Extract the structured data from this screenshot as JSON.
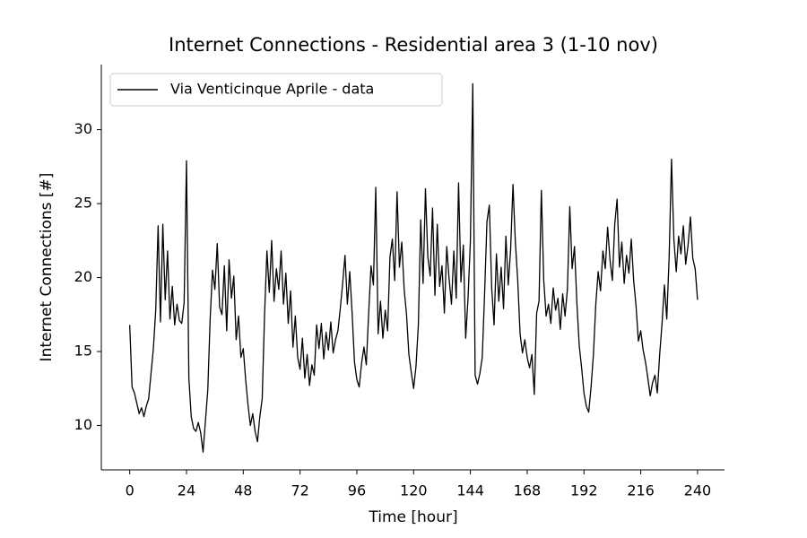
{
  "chart_data": {
    "type": "line",
    "title": "Internet Connections - Residential area 3 (1-10 nov)",
    "xlabel": "Time [hour]",
    "ylabel": "Internet Connections [#]",
    "legend": "upper left",
    "xlim": [
      -12,
      251.4
    ],
    "ylim": [
      7.0,
      34.4
    ],
    "xticks": [
      0,
      24,
      48,
      72,
      96,
      120,
      144,
      168,
      192,
      216,
      240
    ],
    "yticks": [
      10,
      15,
      20,
      25,
      30
    ],
    "x": [
      0,
      1,
      2,
      3,
      4,
      5,
      6,
      7,
      8,
      9,
      10,
      11,
      12,
      13,
      14,
      15,
      16,
      17,
      18,
      19,
      20,
      21,
      22,
      23,
      24,
      25,
      26,
      27,
      28,
      29,
      30,
      31,
      32,
      33,
      34,
      35,
      36,
      37,
      38,
      39,
      40,
      41,
      42,
      43,
      44,
      45,
      46,
      47,
      48,
      49,
      50,
      51,
      52,
      53,
      54,
      55,
      56,
      57,
      58,
      59,
      60,
      61,
      62,
      63,
      64,
      65,
      66,
      67,
      68,
      69,
      70,
      71,
      72,
      73,
      74,
      75,
      76,
      77,
      78,
      79,
      80,
      81,
      82,
      83,
      84,
      85,
      86,
      87,
      88,
      89,
      90,
      91,
      92,
      93,
      94,
      95,
      96,
      97,
      98,
      99,
      100,
      101,
      102,
      103,
      104,
      105,
      106,
      107,
      108,
      109,
      110,
      111,
      112,
      113,
      114,
      115,
      116,
      117,
      118,
      119,
      120,
      121,
      122,
      123,
      124,
      125,
      126,
      127,
      128,
      129,
      130,
      131,
      132,
      133,
      134,
      135,
      136,
      137,
      138,
      139,
      140,
      141,
      142,
      143,
      144,
      145,
      146,
      147,
      148,
      149,
      150,
      151,
      152,
      153,
      154,
      155,
      156,
      157,
      158,
      159,
      160,
      161,
      162,
      163,
      164,
      165,
      166,
      167,
      168,
      169,
      170,
      171,
      172,
      173,
      174,
      175,
      176,
      177,
      178,
      179,
      180,
      181,
      182,
      183,
      184,
      185,
      186,
      187,
      188,
      189,
      190,
      191,
      192,
      193,
      194,
      195,
      196,
      197,
      198,
      199,
      200,
      201,
      202,
      203,
      204,
      205,
      206,
      207,
      208,
      209,
      210,
      211,
      212,
      213,
      214,
      215,
      216,
      217,
      218,
      219,
      220,
      221,
      222,
      223,
      224,
      225,
      226,
      227,
      228,
      229,
      230,
      231,
      232,
      233,
      234,
      235,
      236,
      237,
      238,
      239,
      240
    ],
    "series": [
      {
        "name": "Via Venticinque Aprile - data",
        "color": "#000000",
        "values": [
          16.8,
          12.6,
          12.2,
          11.5,
          10.8,
          11.2,
          10.6,
          11.3,
          11.8,
          13.5,
          15.2,
          17.8,
          23.5,
          17.0,
          23.6,
          18.5,
          21.8,
          17.2,
          19.4,
          16.8,
          18.2,
          17.1,
          16.9,
          18.3,
          27.9,
          13.2,
          10.6,
          9.8,
          9.6,
          10.2,
          9.5,
          8.2,
          10.3,
          12.4,
          17.2,
          20.5,
          19.2,
          22.3,
          18.0,
          17.5,
          20.8,
          16.4,
          21.2,
          18.6,
          20.1,
          15.8,
          17.4,
          14.6,
          15.2,
          13.1,
          11.4,
          10.0,
          10.8,
          9.6,
          8.9,
          10.6,
          11.8,
          17.5,
          21.8,
          19.0,
          22.5,
          18.4,
          20.6,
          19.2,
          21.8,
          18.2,
          20.3,
          16.9,
          19.1,
          15.3,
          17.4,
          14.6,
          13.8,
          15.9,
          13.2,
          14.8,
          12.7,
          14.1,
          13.4,
          16.8,
          15.2,
          16.9,
          14.5,
          16.3,
          15.1,
          17.0,
          14.9,
          15.8,
          16.4,
          17.9,
          19.6,
          21.5,
          18.2,
          20.4,
          17.6,
          14.3,
          13.1,
          12.6,
          14.2,
          15.3,
          14.1,
          17.6,
          20.8,
          19.5,
          26.1,
          16.2,
          18.4,
          15.9,
          17.8,
          16.4,
          21.4,
          22.6,
          19.8,
          25.8,
          20.7,
          22.4,
          19.2,
          17.5,
          14.8,
          13.6,
          12.5,
          14.0,
          16.8,
          23.9,
          19.6,
          26.0,
          21.4,
          20.1,
          24.7,
          18.8,
          23.6,
          19.4,
          20.8,
          17.6,
          22.1,
          19.9,
          18.2,
          21.8,
          18.6,
          26.4,
          19.7,
          22.2,
          15.9,
          18.6,
          22.5,
          33.1,
          13.4,
          12.8,
          13.5,
          14.6,
          18.9,
          23.8,
          24.9,
          19.3,
          16.8,
          21.6,
          18.4,
          20.7,
          17.9,
          22.8,
          19.5,
          21.9,
          26.3,
          22.4,
          19.8,
          16.2,
          14.9,
          15.8,
          14.6,
          13.9,
          14.8,
          12.1,
          17.6,
          18.4,
          25.9,
          19.8,
          17.4,
          18.2,
          16.9,
          19.3,
          17.8,
          18.6,
          16.5,
          18.9,
          17.4,
          19.2,
          24.8,
          20.6,
          22.1,
          18.3,
          15.4,
          13.9,
          12.2,
          11.3,
          10.9,
          12.6,
          14.8,
          18.2,
          20.4,
          19.1,
          21.8,
          20.6,
          23.4,
          21.2,
          19.8,
          23.6,
          25.3,
          20.7,
          22.4,
          19.6,
          21.5,
          20.3,
          22.6,
          19.8,
          18.1,
          15.7,
          16.4,
          15.1,
          14.3,
          13.2,
          12.0,
          12.9,
          13.4,
          12.2,
          14.8,
          16.9,
          19.5,
          17.2,
          21.4,
          28.0,
          22.6,
          20.4,
          22.8,
          21.6,
          23.5,
          20.9,
          22.2,
          24.1,
          21.3,
          20.6,
          18.5
        ]
      }
    ]
  }
}
